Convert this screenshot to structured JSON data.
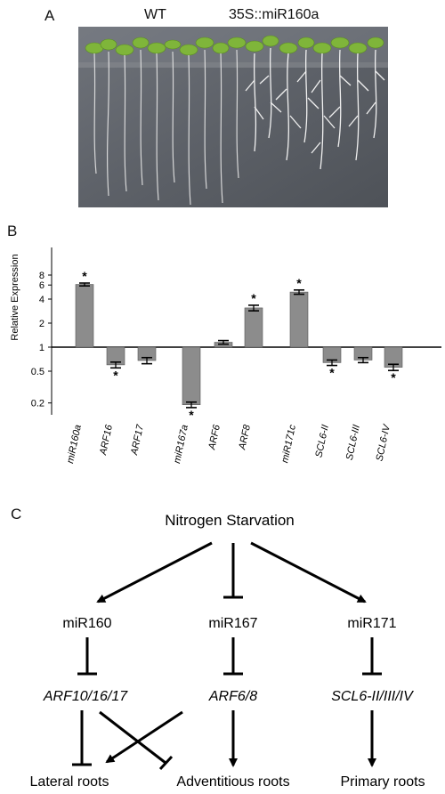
{
  "panels": {
    "a": {
      "letter": "A",
      "labels": [
        "WT",
        "35S::miR160a"
      ]
    },
    "b": {
      "letter": "B",
      "ylabel": "Relative Expression",
      "yticks": [
        "8",
        "6",
        "4",
        "2",
        "1",
        "0.5",
        "0.2"
      ],
      "significance_marker": "*"
    },
    "c": {
      "letter": "C",
      "nodes": {
        "top": "Nitrogen Starvation",
        "mir160": "miR160",
        "mir167": "miR167",
        "mir171": "miR171",
        "arf_a": "ARF10/16/17",
        "arf_b": "ARF6/8",
        "scl": "SCL6-II/III/IV",
        "lateral": "Lateral roots",
        "adventitious": "Adventitious roots",
        "primary": "Primary roots"
      }
    }
  },
  "chart_data": {
    "type": "bar",
    "title": "",
    "xlabel": "",
    "ylabel": "Relative Expression",
    "yscale": "log",
    "ylim": [
      0.15,
      8
    ],
    "baseline": 1,
    "categories": [
      "miR160a",
      "ARF16",
      "ARF17",
      "miR167a",
      "ARF6",
      "ARF8",
      "miR171c",
      "SCL6-II",
      "SCL6-III",
      "SCL6-IV"
    ],
    "values": [
      6.1,
      0.6,
      0.68,
      0.19,
      1.15,
      3.1,
      4.9,
      0.64,
      0.69,
      0.56
    ],
    "errors": [
      0.25,
      0.05,
      0.06,
      0.015,
      0.06,
      0.25,
      0.3,
      0.05,
      0.05,
      0.05
    ],
    "significant": [
      true,
      true,
      false,
      true,
      false,
      true,
      true,
      true,
      false,
      true
    ],
    "bar_color": "#8c8c8c"
  }
}
